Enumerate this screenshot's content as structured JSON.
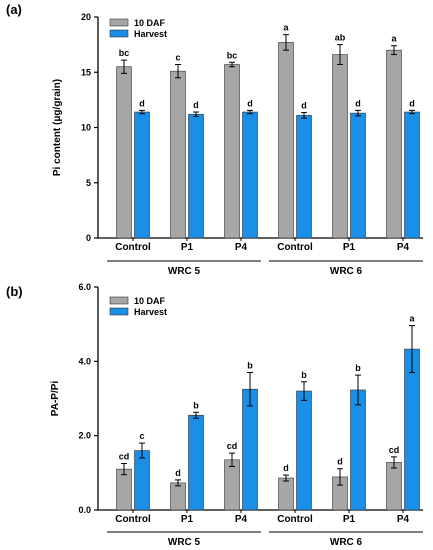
{
  "colors": {
    "dap10": "#a6a6a6",
    "harvest": "#1a8fe8",
    "axis": "#000000"
  },
  "chart_data": [
    {
      "panel": "(a)",
      "type": "bar",
      "ylabel": "Pi content (μg/grain)",
      "ylim": [
        0,
        20
      ],
      "yticks": [
        "0",
        "5",
        "10",
        "15",
        "20"
      ],
      "grid": false,
      "legend_position": "top-left",
      "categories": [
        "Control",
        "P1",
        "P4",
        "Control",
        "P1",
        "P4"
      ],
      "groups": [
        {
          "label": "WRC 5",
          "members": [
            0,
            1,
            2
          ]
        },
        {
          "label": "WRC 6",
          "members": [
            3,
            4,
            5
          ]
        }
      ],
      "series": [
        {
          "name": "10 DAF",
          "values": [
            15.5,
            15.1,
            15.7,
            17.7,
            16.6,
            17.0
          ],
          "errors": [
            0.6,
            0.6,
            0.2,
            0.7,
            0.9,
            0.4
          ],
          "letters": [
            "bc",
            "c",
            "bc",
            "a",
            "ab",
            "a"
          ]
        },
        {
          "name": "Harvest",
          "values": [
            11.4,
            11.2,
            11.4,
            11.1,
            11.3,
            11.4
          ],
          "errors": [
            0.15,
            0.2,
            0.15,
            0.25,
            0.25,
            0.15
          ],
          "letters": [
            "d",
            "d",
            "d",
            "d",
            "d",
            "d"
          ]
        }
      ]
    },
    {
      "panel": "(b)",
      "type": "bar",
      "ylabel": "PA-P/Pi",
      "ylim": [
        0,
        6
      ],
      "yticks": [
        "0.0",
        "2.0",
        "4.0",
        "6.0"
      ],
      "grid": false,
      "legend_position": "top-left",
      "categories": [
        "Control",
        "P1",
        "P4",
        "Control",
        "P1",
        "P4"
      ],
      "groups": [
        {
          "label": "WRC 5",
          "members": [
            0,
            1,
            2
          ]
        },
        {
          "label": "WRC 6",
          "members": [
            3,
            4,
            5
          ]
        }
      ],
      "series": [
        {
          "name": "10 DAF",
          "values": [
            1.1,
            0.73,
            1.35,
            0.86,
            0.89,
            1.28
          ],
          "errors": [
            0.15,
            0.08,
            0.18,
            0.08,
            0.22,
            0.15
          ],
          "letters": [
            "cd",
            "d",
            "cd",
            "d",
            "d",
            "cd"
          ]
        },
        {
          "name": "Harvest",
          "values": [
            1.6,
            2.55,
            3.25,
            3.2,
            3.23,
            4.33
          ],
          "errors": [
            0.2,
            0.08,
            0.45,
            0.25,
            0.4,
            0.63
          ],
          "letters": [
            "c",
            "b",
            "b",
            "b",
            "b",
            "a"
          ]
        }
      ]
    }
  ]
}
